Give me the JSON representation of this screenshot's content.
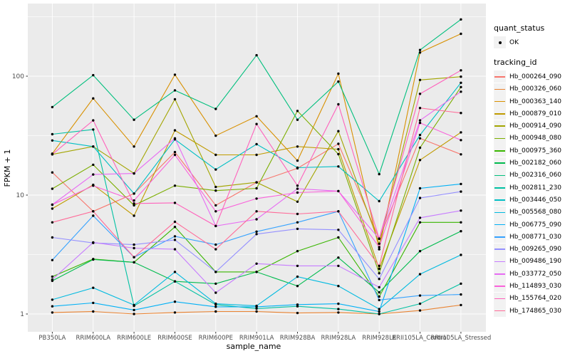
{
  "panel": {
    "bg": "#EBEBEB",
    "grid_color": "#FFFFFF",
    "tick_mark_color": "#333333",
    "tick_text_color": "#4D4D4D",
    "point_color": "#000000",
    "legend_key_bg": "#F2F2F2"
  },
  "chart_data": {
    "type": "line",
    "title": "",
    "xlabel": "sample_name",
    "ylabel": "FPKM + 1",
    "y_scale": "log10",
    "y_ticks": [
      1,
      10,
      100
    ],
    "y_tick_labels": [
      "1",
      "10",
      "100"
    ],
    "y_minor_ticks": [
      3.16,
      31.6,
      316
    ],
    "ylim": [
      0.71,
      408
    ],
    "grid": "on",
    "legend_position": "right",
    "categories": [
      "PB350LA",
      "RRIM600LA",
      "RRIM600LE",
      "RRIM600SE",
      "RRIM600PE",
      "RRIM901LA",
      "RRIM928BA",
      "RRIM928LA",
      "RRIM928LE",
      "RRII105LA_Control",
      "RRII105LA_Stressed"
    ],
    "legend": {
      "quant_status_title": "quant_status",
      "ok_label": "OK",
      "tracking_title": "tracking_id"
    },
    "series": [
      {
        "tracking_id": "Hb_000264_090",
        "color": "#F8766D",
        "values": [
          15.5,
          7.3,
          10.3,
          23,
          8.2,
          12.8,
          16.8,
          27,
          4.3,
          30,
          22
        ]
      },
      {
        "tracking_id": "Hb_000326_060",
        "color": "#EA8331",
        "values": [
          1.03,
          1.05,
          1.0,
          1.03,
          1.05,
          1.05,
          1.02,
          1.03,
          1.0,
          1.07,
          1.19
        ]
      },
      {
        "tracking_id": "Hb_000363_140",
        "color": "#D89000",
        "values": [
          22.3,
          65,
          25.6,
          103,
          31.6,
          46,
          19.5,
          105,
          3.5,
          158,
          227
        ]
      },
      {
        "tracking_id": "Hb_000879_010",
        "color": "#C09B00",
        "values": [
          7.7,
          12.2,
          6.7,
          35,
          21.8,
          21.8,
          25.6,
          24.3,
          2.4,
          19.7,
          33.7
        ]
      },
      {
        "tracking_id": "Hb_000914_090",
        "color": "#A3A500",
        "values": [
          22,
          25.6,
          15.2,
          64,
          11.7,
          12.8,
          8.8,
          34.5,
          3.9,
          93,
          99
        ]
      },
      {
        "tracking_id": "Hb_000948_080",
        "color": "#7CAE00",
        "values": [
          11.3,
          18,
          8.2,
          12,
          10.9,
          11.4,
          51,
          22.1,
          2.2,
          25,
          81
        ]
      },
      {
        "tracking_id": "Hb_000975_360",
        "color": "#39B600",
        "values": [
          2.06,
          2.9,
          2.72,
          5.4,
          2.26,
          2.26,
          3.38,
          4.4,
          1.4,
          5.9,
          5.9
        ]
      },
      {
        "tracking_id": "Hb_002182_060",
        "color": "#00BB4E",
        "values": [
          1.9,
          2.87,
          2.72,
          1.88,
          1.8,
          2.26,
          1.72,
          2.98,
          1.52,
          3.38,
          4.97
        ]
      },
      {
        "tracking_id": "Hb_002316_060",
        "color": "#00BF7D",
        "values": [
          55,
          102,
          43,
          76,
          53,
          150,
          43,
          90,
          15,
          166,
          300
        ]
      },
      {
        "tracking_id": "Hb_002811_230",
        "color": "#00C1A3",
        "values": [
          32.5,
          35.6,
          1.17,
          1.88,
          1.2,
          1.11,
          1.16,
          1.1,
          1.0,
          1.22,
          1.8
        ]
      },
      {
        "tracking_id": "Hb_003446_050",
        "color": "#00BFC4",
        "values": [
          28.8,
          25.6,
          10.3,
          29.4,
          16.4,
          26.8,
          17,
          17.4,
          8.9,
          32,
          88
        ]
      },
      {
        "tracking_id": "Hb_005568_080",
        "color": "#00BAE0",
        "values": [
          1.32,
          1.66,
          1.19,
          2.26,
          1.22,
          1.17,
          2.06,
          1.72,
          1.1,
          2.16,
          3.14
        ]
      },
      {
        "tracking_id": "Hb_006775_090",
        "color": "#00B0F6",
        "values": [
          1.16,
          1.24,
          1.08,
          1.27,
          1.15,
          1.15,
          1.2,
          1.22,
          1.05,
          11.4,
          12.4
        ]
      },
      {
        "tracking_id": "Hb_008771_030",
        "color": "#35A2FF",
        "values": [
          2.84,
          6.7,
          3.0,
          4.5,
          3.83,
          4.93,
          5.9,
          7.3,
          1.31,
          1.43,
          1.46
        ]
      },
      {
        "tracking_id": "Hb_009265_090",
        "color": "#9590FF",
        "values": [
          4.4,
          3.96,
          3.83,
          4.2,
          2.26,
          4.7,
          5.2,
          5.1,
          1.97,
          9.45,
          10.7
        ]
      },
      {
        "tracking_id": "Hb_009486_190",
        "color": "#C77CFF",
        "values": [
          1.95,
          4.0,
          3.58,
          3.5,
          1.51,
          2.65,
          2.54,
          2.54,
          1.68,
          6.44,
          7.4
        ]
      },
      {
        "tracking_id": "Hb_033772_050",
        "color": "#E76BF3",
        "values": [
          8.3,
          14.9,
          15.2,
          30,
          5.5,
          6.26,
          11.3,
          10.8,
          4.3,
          42.5,
          74
        ]
      },
      {
        "tracking_id": "Hb_114893_030",
        "color": "#FA62DB",
        "values": [
          8.3,
          12.0,
          9.0,
          21.8,
          7.3,
          9.35,
          10.5,
          10.8,
          3.65,
          40.5,
          29
        ]
      },
      {
        "tracking_id": "Hb_155764_020",
        "color": "#FF62BC",
        "values": [
          22,
          42.5,
          8.5,
          8.6,
          5.5,
          39.6,
          12,
          58,
          4.3,
          71,
          112
        ]
      },
      {
        "tracking_id": "Hb_174865_030",
        "color": "#FF6A98",
        "values": [
          5.9,
          7.3,
          3.0,
          5.96,
          3.5,
          7.3,
          6.94,
          7.3,
          2.54,
          54,
          49
        ]
      }
    ]
  }
}
